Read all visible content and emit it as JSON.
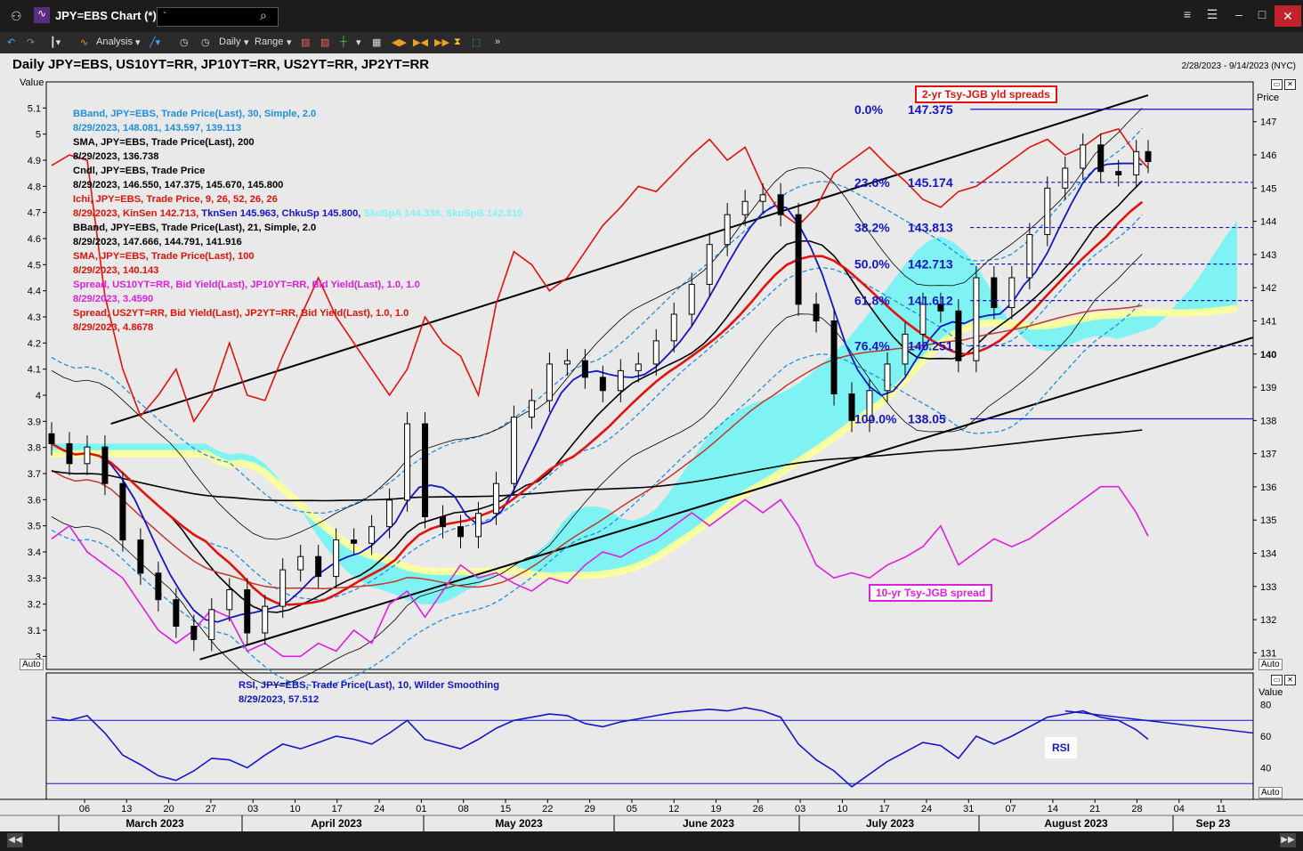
{
  "window": {
    "title": "JPY=EBS Chart (*)",
    "search_value": "`"
  },
  "toolbar": {
    "analysis_label": "Analysis",
    "interval_label": "Daily",
    "range_label": "Range"
  },
  "header": {
    "title": "Daily JPY=EBS, US10YT=RR, JP10YT=RR, US2YT=RR, JP2YT=RR",
    "date_range": "2/28/2023 - 9/14/2023 (NYC)"
  },
  "main_panel": {
    "left_axis_title": "Value",
    "right_axis_title": "Price",
    "auto_label": "Auto",
    "left_ticks": [
      "5.1",
      "5",
      "4.9",
      "4.8",
      "4.7",
      "4.6",
      "4.5",
      "4.4",
      "4.3",
      "4.2",
      "4.1",
      "4",
      "3.9",
      "3.8",
      "3.7",
      "3.6",
      "3.5",
      "3.4",
      "3.3",
      "3.2",
      "3.1",
      "3"
    ],
    "right_ticks": [
      "147",
      "146",
      "145",
      "144",
      "143",
      "142",
      "141",
      "140",
      "139",
      "138",
      "137",
      "136",
      "135",
      "134",
      "133",
      "132",
      "131"
    ]
  },
  "legend": [
    {
      "line1": "BBand, JPY=EBS, Trade Price(Last),  30, Simple, 2.0",
      "line2": "8/29/2023, 148.081, 143.597, 139.113",
      "color": "#1f8fe6"
    },
    {
      "line1": "SMA, JPY=EBS, Trade Price(Last),  200",
      "line2": "8/29/2023, 136.738",
      "color": "#000000"
    },
    {
      "line1": "Cndl, JPY=EBS, Trade Price",
      "line2": "8/29/2023, 146.550, 147.375, 145.670, 145.800",
      "color": "#000000"
    },
    {
      "line1": "Ichi, JPY=EBS, Trade Price,  9, 26, 52, 26, 26",
      "line2a": "8/29/2023, KinSen 142.713, ",
      "line2b": "TknSen 145.963, ",
      "line2c": "ChkuSp 145.800, ",
      "line2d": "SkuSpA 144.338, SkuSpB 142.310",
      "color": "#e3120b"
    },
    {
      "line1": "BBand, JPY=EBS, Trade Price(Last),  21, Simple, 2.0",
      "line2": "8/29/2023, 147.666, 144.791, 141.916",
      "color": "#000000"
    },
    {
      "line1": "SMA, JPY=EBS, Trade Price(Last),  100",
      "line2": "8/29/2023, 140.143",
      "color": "#e3120b"
    },
    {
      "line1": "Spread, US10YT=RR, Bid Yield(Last), JP10YT=RR, Bid Yield(Last),  1.0, 1.0",
      "line2": "8/29/2023, 3.4590",
      "color": "#e020e0"
    },
    {
      "line1": "Spread, US2YT=RR, Bid Yield(Last), JP2YT=RR, Bid Yield(Last),  1.0, 1.0",
      "line2": "8/29/2023, 4.8678",
      "color": "#e3120b"
    }
  ],
  "annotations": {
    "box_2yr": "2-yr Tsy-JGB yld spreads",
    "box_10yr": "10-yr Tsy-JGB spread",
    "box_rsi": "RSI"
  },
  "fibonacci": [
    {
      "pct": "0.0%",
      "value": "147.375"
    },
    {
      "pct": "23.6%",
      "value": "145.174"
    },
    {
      "pct": "38.2%",
      "value": "143.813"
    },
    {
      "pct": "50.0%",
      "value": "142.713"
    },
    {
      "pct": "61.8%",
      "value": "141.612"
    },
    {
      "pct": "76.4%",
      "value": "140.251"
    },
    {
      "pct": "100.0%",
      "value": "138.05"
    }
  ],
  "rsi_panel": {
    "legend_line1": "RSI, JPY=EBS, Trade Price(Last),  10, Wilder Smoothing",
    "legend_line2": "8/29/2023, 57.512",
    "axis_title": "Value",
    "ticks": [
      "80",
      "60",
      "40"
    ],
    "auto_label": "Auto"
  },
  "x_axis": {
    "days": [
      "06",
      "13",
      "20",
      "27",
      "03",
      "10",
      "17",
      "24",
      "01",
      "08",
      "15",
      "22",
      "29",
      "05",
      "12",
      "19",
      "26",
      "03",
      "10",
      "17",
      "24",
      "31",
      "07",
      "14",
      "21",
      "28",
      "04",
      "11"
    ],
    "months": [
      "March 2023",
      "April 2023",
      "May 2023",
      "June 2023",
      "July 2023",
      "August 2023",
      "Sep 23"
    ]
  },
  "colors": {
    "blue_text": "#1515c8",
    "red": "#e3120b",
    "magenta": "#e020e0",
    "cyan_cloud": "#7ff3f3",
    "yellow_cloud": "#ffff99"
  },
  "chart_data": {
    "type": "candlestick",
    "price_axis_range": [
      130.5,
      148.2
    ],
    "spread_axis_range": [
      2.95,
      5.2
    ],
    "rsi_axis_range": [
      20,
      100
    ],
    "x_range": [
      "2023-03-01",
      "2023-09-14"
    ],
    "candles_approx": [
      [
        0,
        137.3
      ],
      [
        3,
        136.7
      ],
      [
        6,
        137.2
      ],
      [
        9,
        136.1
      ],
      [
        12,
        134.4
      ],
      [
        15,
        133.4
      ],
      [
        18,
        132.6
      ],
      [
        21,
        131.8
      ],
      [
        24,
        131.4
      ],
      [
        27,
        132.3
      ],
      [
        30,
        132.9
      ],
      [
        33,
        131.6
      ],
      [
        36,
        132.4
      ],
      [
        39,
        133.5
      ],
      [
        42,
        133.9
      ],
      [
        45,
        133.3
      ],
      [
        48,
        134.4
      ],
      [
        51,
        134.3
      ],
      [
        54,
        134.8
      ],
      [
        57,
        135.6
      ],
      [
        60,
        137.9
      ],
      [
        63,
        135.1
      ],
      [
        66,
        134.8
      ],
      [
        69,
        134.5
      ],
      [
        72,
        135.2
      ],
      [
        75,
        136.1
      ],
      [
        78,
        138.1
      ],
      [
        81,
        138.6
      ],
      [
        84,
        139.7
      ],
      [
        87,
        139.8
      ],
      [
        90,
        139.3
      ],
      [
        93,
        138.9
      ],
      [
        96,
        139.5
      ],
      [
        99,
        139.7
      ],
      [
        102,
        140.4
      ],
      [
        105,
        141.2
      ],
      [
        108,
        142.1
      ],
      [
        111,
        143.3
      ],
      [
        114,
        144.2
      ],
      [
        117,
        144.6
      ],
      [
        120,
        144.8
      ],
      [
        123,
        144.2
      ],
      [
        126,
        141.5
      ],
      [
        129,
        141.0
      ],
      [
        132,
        138.8
      ],
      [
        135,
        138.0
      ],
      [
        138,
        138.9
      ],
      [
        141,
        139.7
      ],
      [
        144,
        140.6
      ],
      [
        147,
        141.5
      ],
      [
        150,
        141.3
      ],
      [
        153,
        139.8
      ],
      [
        156,
        142.3
      ],
      [
        159,
        141.4
      ],
      [
        162,
        142.3
      ],
      [
        165,
        143.6
      ],
      [
        168,
        145.0
      ],
      [
        171,
        145.6
      ],
      [
        174,
        146.3
      ],
      [
        177,
        145.5
      ],
      [
        180,
        145.4
      ],
      [
        183,
        146.1
      ],
      [
        185,
        145.8
      ]
    ],
    "fib_levels": [
      147.375,
      145.174,
      143.813,
      142.713,
      141.612,
      140.251,
      138.05
    ],
    "last_values": {
      "bband30": [
        148.081,
        143.597,
        139.113
      ],
      "sma200": 136.738,
      "candle_ohlc": [
        146.55,
        147.375,
        145.67,
        145.8
      ],
      "ichimoku": {
        "kijun": 142.713,
        "tenkan": 145.963,
        "chikou": 145.8,
        "spanA": 144.338,
        "spanB": 142.31
      },
      "bband21": [
        147.666,
        144.791,
        141.916
      ],
      "sma100": 140.143,
      "spread10y": 3.459,
      "spread2y": 4.8678,
      "rsi": 57.512
    },
    "spread_2y_approx": [
      [
        0,
        4.88
      ],
      [
        3,
        4.92
      ],
      [
        6,
        4.9
      ],
      [
        9,
        4.38
      ],
      [
        12,
        4.1
      ],
      [
        15,
        3.92
      ],
      [
        18,
        4.0
      ],
      [
        21,
        4.1
      ],
      [
        24,
        3.9
      ],
      [
        27,
        4.0
      ],
      [
        30,
        4.2
      ],
      [
        33,
        4.0
      ],
      [
        36,
        3.98
      ],
      [
        39,
        4.15
      ],
      [
        42,
        4.3
      ],
      [
        45,
        4.45
      ],
      [
        48,
        4.3
      ],
      [
        51,
        4.2
      ],
      [
        54,
        4.1
      ],
      [
        57,
        4.0
      ],
      [
        60,
        4.1
      ],
      [
        63,
        4.3
      ],
      [
        66,
        4.2
      ],
      [
        69,
        4.15
      ],
      [
        72,
        4.0
      ],
      [
        75,
        4.35
      ],
      [
        78,
        4.55
      ],
      [
        81,
        4.5
      ],
      [
        84,
        4.4
      ],
      [
        87,
        4.45
      ],
      [
        90,
        4.55
      ],
      [
        93,
        4.65
      ],
      [
        96,
        4.72
      ],
      [
        99,
        4.8
      ],
      [
        102,
        4.78
      ],
      [
        105,
        4.85
      ],
      [
        108,
        4.92
      ],
      [
        111,
        4.98
      ],
      [
        114,
        4.9
      ],
      [
        117,
        4.95
      ],
      [
        120,
        4.8
      ],
      [
        123,
        4.7
      ],
      [
        126,
        4.65
      ],
      [
        129,
        4.72
      ],
      [
        132,
        4.85
      ],
      [
        135,
        4.9
      ],
      [
        138,
        4.95
      ],
      [
        141,
        4.88
      ],
      [
        144,
        4.82
      ],
      [
        147,
        4.75
      ],
      [
        150,
        4.72
      ],
      [
        153,
        4.78
      ],
      [
        156,
        4.8
      ],
      [
        159,
        4.85
      ],
      [
        162,
        4.9
      ],
      [
        165,
        4.95
      ],
      [
        168,
        4.98
      ],
      [
        171,
        4.92
      ],
      [
        174,
        4.95
      ],
      [
        177,
        5.0
      ],
      [
        180,
        5.02
      ],
      [
        183,
        4.92
      ],
      [
        185,
        4.87
      ]
    ],
    "spread_10y_approx": [
      [
        0,
        3.45
      ],
      [
        3,
        3.5
      ],
      [
        6,
        3.4
      ],
      [
        9,
        3.35
      ],
      [
        12,
        3.3
      ],
      [
        15,
        3.2
      ],
      [
        18,
        3.1
      ],
      [
        21,
        3.05
      ],
      [
        24,
        3.1
      ],
      [
        27,
        3.18
      ],
      [
        30,
        3.15
      ],
      [
        33,
        3.02
      ],
      [
        36,
        3.05
      ],
      [
        39,
        3.0
      ],
      [
        42,
        3.0
      ],
      [
        45,
        3.05
      ],
      [
        48,
        3.02
      ],
      [
        51,
        3.1
      ],
      [
        54,
        3.05
      ],
      [
        57,
        3.2
      ],
      [
        60,
        3.25
      ],
      [
        63,
        3.15
      ],
      [
        66,
        3.25
      ],
      [
        69,
        3.35
      ],
      [
        72,
        3.3
      ],
      [
        75,
        3.32
      ],
      [
        78,
        3.28
      ],
      [
        81,
        3.25
      ],
      [
        84,
        3.3
      ],
      [
        87,
        3.28
      ],
      [
        90,
        3.35
      ],
      [
        93,
        3.4
      ],
      [
        96,
        3.38
      ],
      [
        99,
        3.42
      ],
      [
        102,
        3.45
      ],
      [
        105,
        3.5
      ],
      [
        108,
        3.55
      ],
      [
        111,
        3.5
      ],
      [
        114,
        3.55
      ],
      [
        117,
        3.6
      ],
      [
        120,
        3.55
      ],
      [
        123,
        3.6
      ],
      [
        126,
        3.5
      ],
      [
        129,
        3.35
      ],
      [
        132,
        3.3
      ],
      [
        135,
        3.32
      ],
      [
        138,
        3.3
      ],
      [
        141,
        3.35
      ],
      [
        144,
        3.38
      ],
      [
        147,
        3.42
      ],
      [
        150,
        3.5
      ],
      [
        153,
        3.35
      ],
      [
        156,
        3.4
      ],
      [
        159,
        3.45
      ],
      [
        162,
        3.42
      ],
      [
        165,
        3.45
      ],
      [
        168,
        3.5
      ],
      [
        171,
        3.55
      ],
      [
        174,
        3.6
      ],
      [
        177,
        3.65
      ],
      [
        180,
        3.65
      ],
      [
        183,
        3.55
      ],
      [
        185,
        3.46
      ]
    ],
    "rsi_approx": [
      [
        0,
        72
      ],
      [
        3,
        70
      ],
      [
        6,
        73
      ],
      [
        9,
        62
      ],
      [
        12,
        48
      ],
      [
        15,
        42
      ],
      [
        18,
        35
      ],
      [
        21,
        32
      ],
      [
        24,
        38
      ],
      [
        27,
        46
      ],
      [
        30,
        45
      ],
      [
        33,
        40
      ],
      [
        36,
        48
      ],
      [
        39,
        55
      ],
      [
        42,
        52
      ],
      [
        45,
        56
      ],
      [
        48,
        60
      ],
      [
        51,
        58
      ],
      [
        54,
        55
      ],
      [
        57,
        62
      ],
      [
        60,
        70
      ],
      [
        63,
        58
      ],
      [
        66,
        55
      ],
      [
        69,
        52
      ],
      [
        72,
        58
      ],
      [
        75,
        65
      ],
      [
        78,
        70
      ],
      [
        81,
        72
      ],
      [
        84,
        74
      ],
      [
        87,
        73
      ],
      [
        90,
        68
      ],
      [
        93,
        66
      ],
      [
        96,
        69
      ],
      [
        99,
        71
      ],
      [
        102,
        73
      ],
      [
        105,
        75
      ],
      [
        108,
        76
      ],
      [
        111,
        77
      ],
      [
        114,
        76
      ],
      [
        117,
        78
      ],
      [
        120,
        76
      ],
      [
        123,
        72
      ],
      [
        126,
        55
      ],
      [
        129,
        45
      ],
      [
        132,
        38
      ],
      [
        135,
        28
      ],
      [
        138,
        36
      ],
      [
        141,
        44
      ],
      [
        144,
        50
      ],
      [
        147,
        56
      ],
      [
        150,
        54
      ],
      [
        153,
        46
      ],
      [
        156,
        60
      ],
      [
        159,
        55
      ],
      [
        162,
        60
      ],
      [
        165,
        66
      ],
      [
        168,
        72
      ],
      [
        171,
        74
      ],
      [
        174,
        76
      ],
      [
        177,
        72
      ],
      [
        180,
        70
      ],
      [
        183,
        64
      ],
      [
        185,
        58
      ]
    ]
  }
}
